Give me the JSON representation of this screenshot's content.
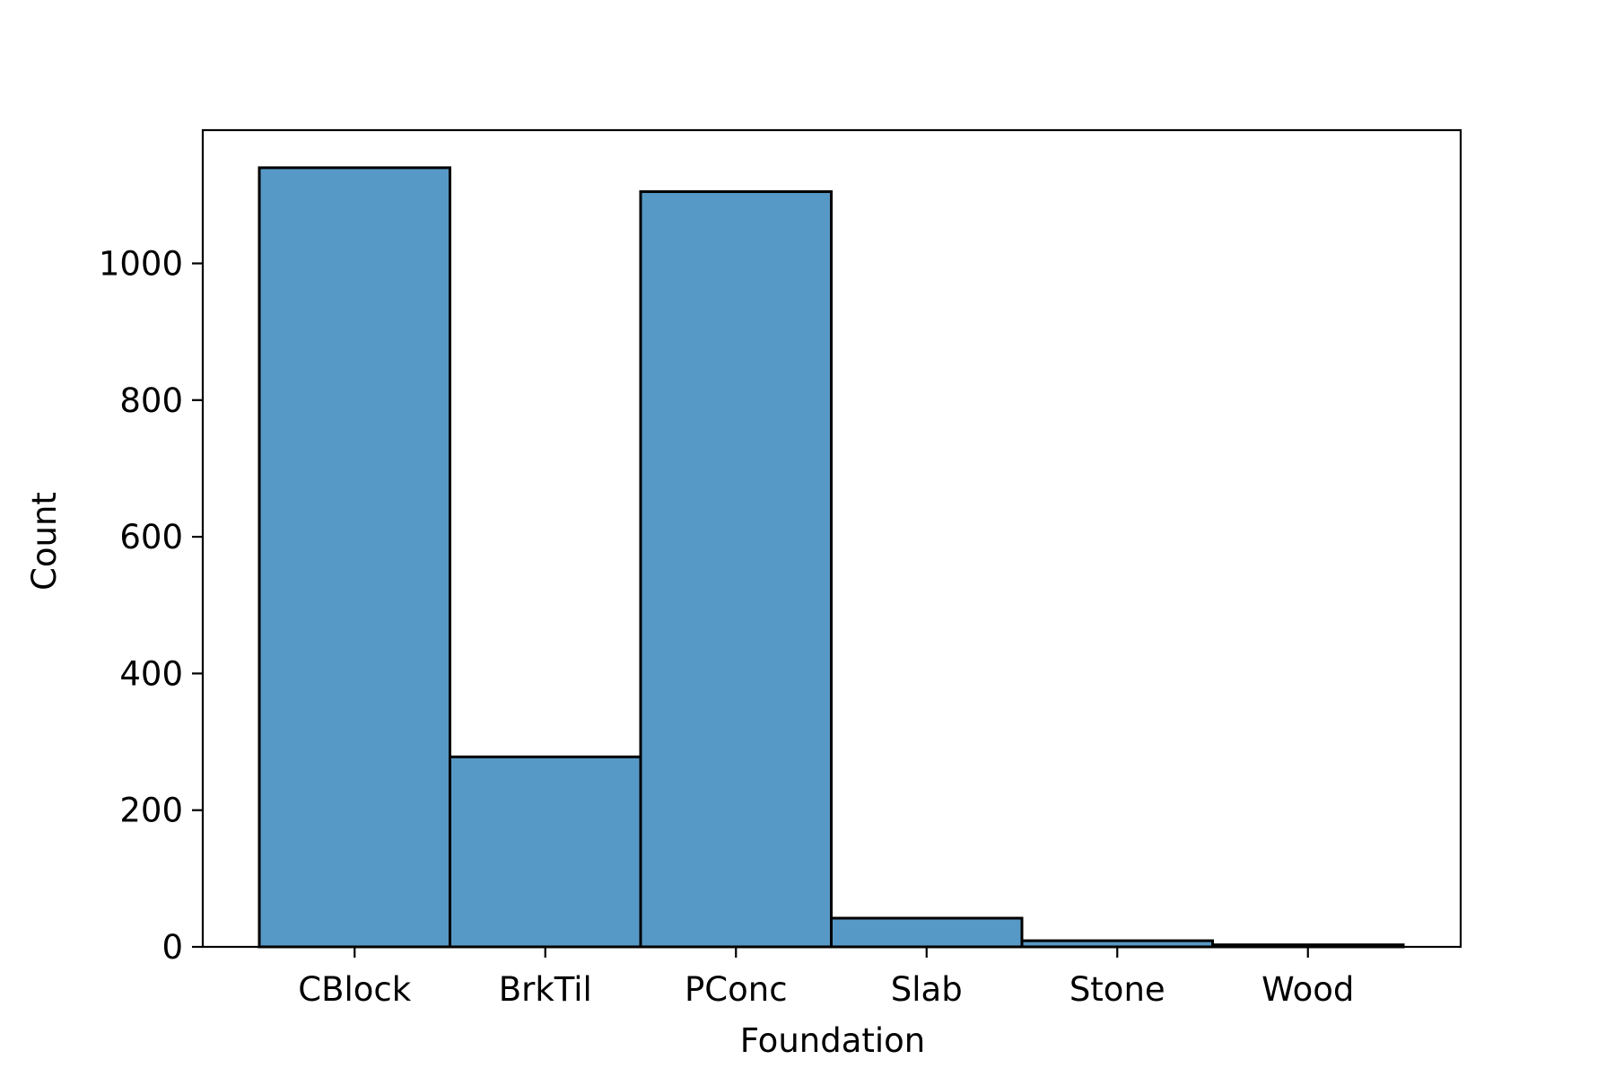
{
  "chart_data": {
    "type": "bar",
    "title": "",
    "xlabel": "Foundation",
    "ylabel": "Count",
    "categories": [
      "CBlock",
      "BrkTil",
      "PConc",
      "Slab",
      "Stone",
      "Wood"
    ],
    "values": [
      1140,
      278,
      1105,
      42,
      9,
      3
    ],
    "ylim": [
      0,
      1195
    ],
    "yticks": [
      0,
      200,
      400,
      600,
      800,
      1000
    ],
    "grid": false,
    "bar_color": "#5799c6",
    "edge_color": "#000000"
  }
}
